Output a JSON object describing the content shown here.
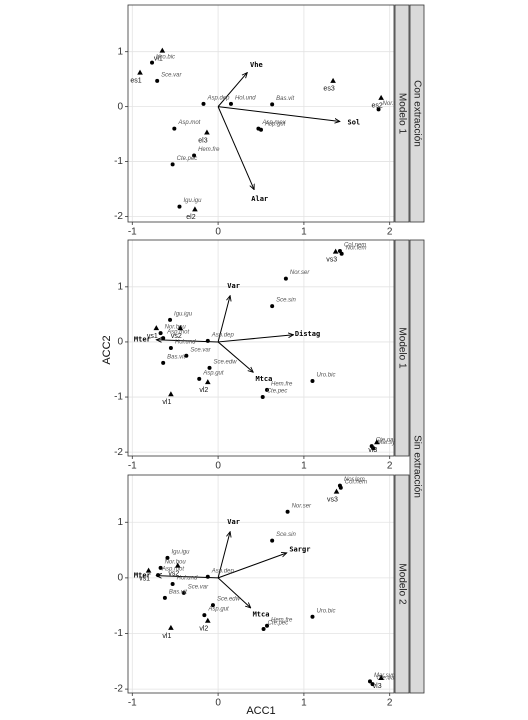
{
  "axes": {
    "x_label": "ACC1",
    "y_label": "ACC2"
  },
  "outer_strips": [
    "Con extracción",
    "Sin extracción"
  ],
  "chart_data": [
    {
      "type": "biplot",
      "strip": "Modelo 1",
      "color": "#000000",
      "grid": true,
      "xlim": [
        -1.05,
        2.05
      ],
      "ylim": [
        -2.1,
        1.85
      ],
      "xticks": [
        -1,
        0,
        1,
        2
      ],
      "yticks": [
        -2,
        -1,
        0,
        1
      ],
      "species": {
        "names": [
          "Uro.bic",
          "Sce.var",
          "Asp.dep",
          "Hol.und",
          "Bas.vit",
          "Asp.mex",
          "Asp.gut",
          "Asp.mot",
          "Hem.fre",
          "Cte.pec",
          "Igu.igu",
          "Nor.sem"
        ],
        "x": [
          -0.77,
          -0.71,
          -0.17,
          0.15,
          0.63,
          0.47,
          0.5,
          -0.51,
          -0.28,
          -0.53,
          -0.45,
          1.87
        ],
        "y": [
          0.8,
          0.47,
          0.05,
          0.05,
          0.04,
          -0.4,
          -0.42,
          -0.4,
          -0.89,
          -1.05,
          -1.82,
          -0.05
        ]
      },
      "sites": {
        "names": [
          "vl1",
          "es1",
          "es3",
          "es2",
          "el3",
          "el2"
        ],
        "x": [
          -0.65,
          -0.91,
          1.34,
          1.9,
          -0.13,
          -0.27
        ],
        "y": [
          1.02,
          0.62,
          0.47,
          0.16,
          -0.47,
          -1.87
        ]
      },
      "vectors": {
        "names": [
          "Vhe",
          "Sol",
          "Alar"
        ],
        "x": [
          0.34,
          1.42,
          0.42
        ],
        "y": [
          0.62,
          -0.27,
          -1.51
        ]
      }
    },
    {
      "type": "biplot",
      "strip": "Modelo 1",
      "color": "#000000",
      "grid": true,
      "xlim": [
        -1.05,
        2.05
      ],
      "ylim": [
        -2.07,
        1.85
      ],
      "xticks": [
        -1,
        0,
        1,
        2
      ],
      "yticks": [
        -2,
        -1,
        0,
        1
      ],
      "species": {
        "names": [
          "Col.nem",
          "Nor.lem",
          "Nor.ser",
          "Sce.sin",
          "Igu.igu",
          "Nor.bou",
          "Asp.dep",
          "Asp.mot",
          "Hol.und",
          "Sce.var",
          "Bas.vit",
          "Sce.edw",
          "Asp.gut",
          "Uro.bic",
          "Hem.fre",
          "Cte.pec",
          "Cte.oax",
          "Mar.syn"
        ],
        "x": [
          1.42,
          1.44,
          0.79,
          0.63,
          -0.56,
          -0.67,
          -0.12,
          -0.64,
          -0.55,
          -0.37,
          -0.64,
          -0.1,
          -0.22,
          1.1,
          0.57,
          0.52,
          1.79,
          1.81
        ],
        "y": [
          1.65,
          1.6,
          1.15,
          0.65,
          0.4,
          0.16,
          0.02,
          0.07,
          -0.11,
          -0.25,
          -0.38,
          -0.47,
          -0.67,
          -0.71,
          -0.87,
          -1.0,
          -1.89,
          -1.93
        ]
      },
      "sites": {
        "names": [
          "vs3",
          "vs2",
          "vs1",
          "vl2",
          "vl1",
          "vl3"
        ],
        "x": [
          1.37,
          -0.44,
          -0.72,
          -0.12,
          -0.55,
          1.85
        ],
        "y": [
          1.64,
          0.25,
          0.25,
          -0.73,
          -0.95,
          -1.82
        ]
      },
      "vectors": {
        "names": [
          "Var",
          "Distag",
          "Mter",
          "Mtca"
        ],
        "x": [
          0.14,
          0.88,
          -0.72,
          0.41
        ],
        "y": [
          0.84,
          0.13,
          0.04,
          -0.55
        ]
      }
    },
    {
      "type": "biplot",
      "strip": "Modelo 2",
      "color": "#000000",
      "grid": true,
      "xlim": [
        -1.05,
        2.05
      ],
      "ylim": [
        -2.07,
        1.85
      ],
      "xticks": [
        -1,
        0,
        1,
        2
      ],
      "yticks": [
        -2,
        -1,
        0,
        1
      ],
      "species": {
        "names": [
          "Nor.lem",
          "Col.nem",
          "Nor.ser",
          "Sce.sin",
          "Igu.igu",
          "Nor.bou",
          "Asp.dep",
          "Asp.mot",
          "Hol.und",
          "Sce.var",
          "Bas.vit",
          "Sce.edw",
          "Asp.gut",
          "Uro.bic",
          "Hem.fre",
          "Cte.pec",
          "Mar.syn",
          "Cte.oax"
        ],
        "x": [
          1.42,
          1.43,
          0.81,
          0.63,
          -0.59,
          -0.67,
          -0.12,
          -0.7,
          -0.53,
          -0.4,
          -0.62,
          -0.06,
          -0.16,
          1.1,
          0.57,
          0.53,
          1.77,
          1.8
        ],
        "y": [
          1.66,
          1.62,
          1.19,
          0.67,
          0.36,
          0.18,
          0.02,
          0.05,
          -0.11,
          -0.27,
          -0.36,
          -0.49,
          -0.67,
          -0.7,
          -0.86,
          -0.92,
          -1.86,
          -1.91
        ]
      },
      "sites": {
        "names": [
          "vs3",
          "vs2",
          "vs1",
          "vl2",
          "vl1",
          "vl3"
        ],
        "x": [
          1.38,
          -0.47,
          -0.81,
          -0.12,
          -0.55,
          1.9
        ],
        "y": [
          1.55,
          0.22,
          0.13,
          -0.77,
          -0.9,
          -1.8
        ]
      },
      "vectors": {
        "names": [
          "Var",
          "Sargr",
          "Mter",
          "Mtca"
        ],
        "x": [
          0.14,
          0.8,
          -0.72,
          0.38
        ],
        "y": [
          0.83,
          0.45,
          0.04,
          -0.54
        ]
      }
    }
  ]
}
